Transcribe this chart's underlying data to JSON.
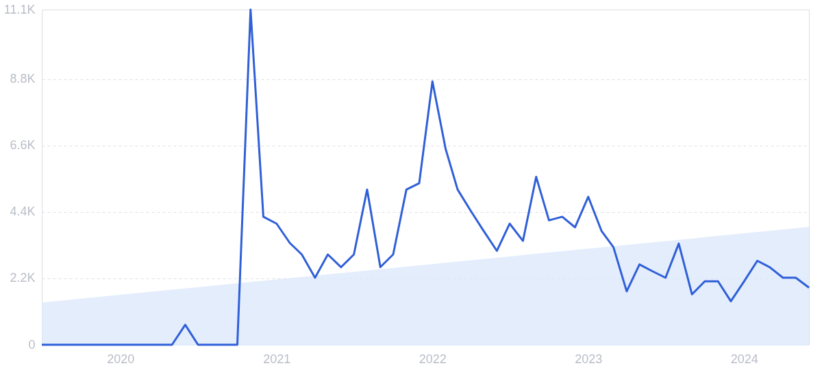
{
  "chart_data": {
    "type": "line",
    "xlim": [
      "2019-07-01",
      "2024-06-01"
    ],
    "xticks": [
      {
        "value": "2020-01-01",
        "label": "2020"
      },
      {
        "value": "2021-01-01",
        "label": "2021"
      },
      {
        "value": "2022-01-01",
        "label": "2022"
      },
      {
        "value": "2023-01-01",
        "label": "2023"
      },
      {
        "value": "2024-01-01",
        "label": "2024"
      }
    ],
    "ylim": [
      0,
      11100
    ],
    "yticks": [
      0,
      {
        "value": 2200,
        "label": "2.2K"
      },
      {
        "value": 4400,
        "label": "4.4K"
      },
      {
        "value": 6600,
        "label": "6.6K"
      },
      {
        "value": 8800,
        "label": "8.8K"
      },
      {
        "value": 11100,
        "label": "11.1K"
      }
    ],
    "grid": "y",
    "series": [
      {
        "type": "area",
        "color": "#dce8fb",
        "x": [
          "2019-07-01",
          "2024-06-01"
        ],
        "values": [
          1400,
          3900
        ]
      },
      {
        "color": "#2f5fd8",
        "x": [
          "2019-07-01",
          "2019-08-01",
          "2019-09-01",
          "2019-10-01",
          "2019-11-01",
          "2019-12-01",
          "2020-01-01",
          "2020-02-01",
          "2020-03-01",
          "2020-04-01",
          "2020-05-01",
          "2020-06-01",
          "2020-07-01",
          "2020-08-01",
          "2020-09-01",
          "2020-10-01",
          "2020-11-01",
          "2020-12-01",
          "2021-01-01",
          "2021-02-01",
          "2021-03-01",
          "2021-04-01",
          "2021-05-01",
          "2021-06-01",
          "2021-07-01",
          "2021-08-01",
          "2021-09-01",
          "2021-10-01",
          "2021-11-01",
          "2021-12-01",
          "2022-01-01",
          "2022-02-01",
          "2022-03-01",
          "2022-04-01",
          "2022-05-01",
          "2022-06-01",
          "2022-07-01",
          "2022-08-01",
          "2022-09-01",
          "2022-10-01",
          "2022-11-01",
          "2022-12-01",
          "2023-01-01",
          "2023-02-01",
          "2023-03-01",
          "2023-04-01",
          "2023-05-01",
          "2023-06-01",
          "2023-07-01",
          "2023-08-01",
          "2023-09-01",
          "2023-10-01",
          "2023-11-01",
          "2023-12-01",
          "2024-01-01",
          "2024-02-01",
          "2024-03-01",
          "2024-04-01",
          "2024-05-01",
          "2024-06-01"
        ],
        "values": [
          0,
          0,
          0,
          0,
          0,
          0,
          0,
          0,
          0,
          0,
          0,
          660,
          0,
          0,
          0,
          0,
          11100,
          4240,
          4010,
          3370,
          2990,
          2220,
          2990,
          2570,
          2990,
          5140,
          2570,
          2990,
          5140,
          5350,
          8720,
          6480,
          5140,
          4430,
          3770,
          3110,
          4010,
          3440,
          5560,
          4120,
          4240,
          3890,
          4900,
          3770,
          3230,
          1770,
          2660,
          2430,
          2220,
          3350,
          1670,
          2100,
          2100,
          1440,
          2100,
          2780,
          2570,
          2220,
          2220,
          1890
        ]
      }
    ]
  }
}
